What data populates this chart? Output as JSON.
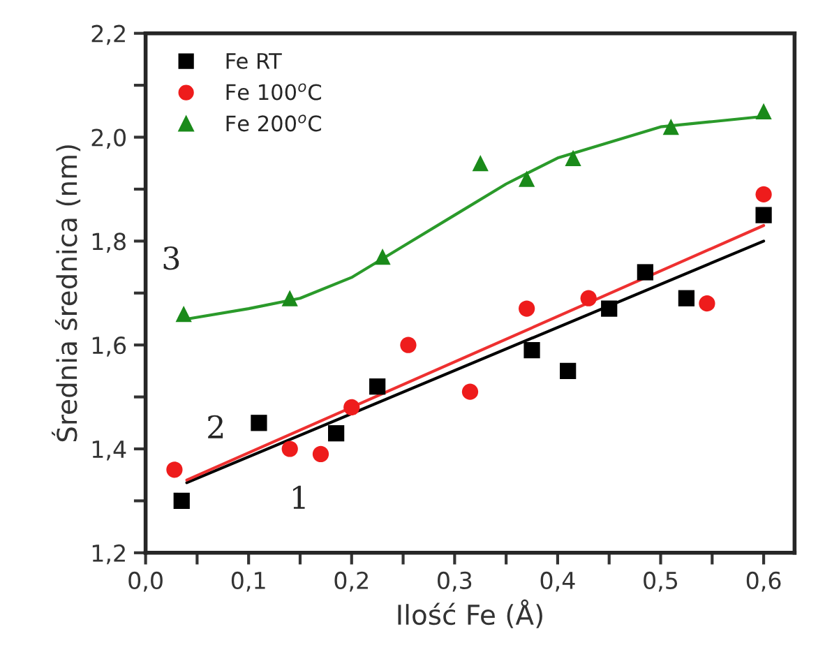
{
  "chart_data": {
    "type": "scatter",
    "xlabel": "Ilość Fe (Å)",
    "ylabel": "Średnia średnica (nm)",
    "xlim": [
      0.0,
      0.63
    ],
    "ylim": [
      1.2,
      2.2
    ],
    "xticks": [
      {
        "value": 0.0,
        "label": "0,0"
      },
      {
        "value": 0.05,
        "label": null
      },
      {
        "value": 0.1,
        "label": "0,1"
      },
      {
        "value": 0.15,
        "label": null
      },
      {
        "value": 0.2,
        "label": "0,2"
      },
      {
        "value": 0.25,
        "label": null
      },
      {
        "value": 0.3,
        "label": "0,3"
      },
      {
        "value": 0.35,
        "label": null
      },
      {
        "value": 0.4,
        "label": "0,4"
      },
      {
        "value": 0.45,
        "label": null
      },
      {
        "value": 0.5,
        "label": "0,5"
      },
      {
        "value": 0.55,
        "label": null
      },
      {
        "value": 0.6,
        "label": "0,6"
      }
    ],
    "yticks": [
      {
        "value": 1.2,
        "label": "1,2"
      },
      {
        "value": 1.3,
        "label": null
      },
      {
        "value": 1.4,
        "label": "1,4"
      },
      {
        "value": 1.5,
        "label": null
      },
      {
        "value": 1.6,
        "label": "1,6"
      },
      {
        "value": 1.7,
        "label": null
      },
      {
        "value": 1.8,
        "label": "1,8"
      },
      {
        "value": 1.9,
        "label": null
      },
      {
        "value": 2.0,
        "label": "2,0"
      },
      {
        "value": 2.1,
        "label": null
      },
      {
        "value": 2.2,
        "label": "2,2"
      }
    ],
    "grid": false,
    "legend": "top left",
    "series": [
      {
        "name": "Fe RT",
        "marker": "square",
        "color": "#000000",
        "x": [
          0.035,
          0.11,
          0.185,
          0.225,
          0.375,
          0.41,
          0.45,
          0.485,
          0.525,
          0.6
        ],
        "values": [
          1.3,
          1.45,
          1.43,
          1.52,
          1.59,
          1.55,
          1.67,
          1.74,
          1.69,
          1.85
        ]
      },
      {
        "name": "Fe 100$^{o}$C",
        "marker": "circle",
        "color": "#ee1c1c",
        "x": [
          0.028,
          0.14,
          0.17,
          0.2,
          0.255,
          0.315,
          0.37,
          0.43,
          0.545,
          0.6
        ],
        "values": [
          1.36,
          1.4,
          1.39,
          1.48,
          1.6,
          1.51,
          1.67,
          1.69,
          1.68,
          1.89
        ]
      },
      {
        "name": "Fe 200$^{o}$C",
        "marker": "triangle",
        "color": "#1a8a1a",
        "x": [
          0.037,
          0.14,
          0.23,
          0.325,
          0.37,
          0.415,
          0.51,
          0.6
        ],
        "values": [
          1.66,
          1.69,
          1.77,
          1.95,
          1.92,
          1.96,
          2.02,
          2.05
        ]
      },
      {
        "type": "line",
        "marker": "none",
        "color": "#000000",
        "x": [
          0.04,
          0.6
        ],
        "values": [
          1.335,
          1.8
        ]
      },
      {
        "type": "line",
        "marker": "none",
        "color": "#ee3030",
        "x": [
          0.04,
          0.6
        ],
        "values": [
          1.34,
          1.83
        ]
      },
      {
        "type": "line",
        "marker": "none",
        "color": "#2a9a2a",
        "x": [
          0.04,
          0.1,
          0.15,
          0.2,
          0.25,
          0.3,
          0.35,
          0.4,
          0.45,
          0.5,
          0.55,
          0.6
        ],
        "values": [
          1.65,
          1.67,
          1.69,
          1.73,
          1.79,
          1.85,
          1.91,
          1.96,
          1.99,
          2.02,
          2.03,
          2.04
        ]
      }
    ],
    "annotations": [
      "1",
      "2",
      "3"
    ]
  }
}
